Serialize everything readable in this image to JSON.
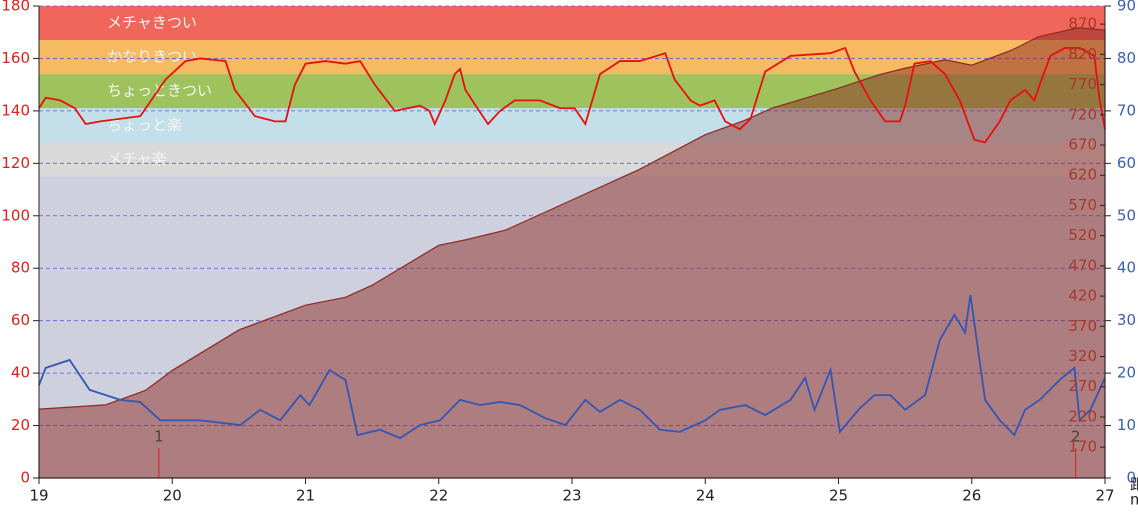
{
  "chart_data": {
    "type": "line",
    "xlim": [
      19,
      27
    ],
    "xticks": [
      19,
      20,
      21,
      22,
      23,
      24,
      25,
      26,
      27
    ],
    "x_label": "距",
    "x_unit": "m",
    "ylim": [
      0,
      180
    ],
    "yticks": [
      0,
      20,
      40,
      60,
      80,
      100,
      120,
      140,
      160,
      180
    ],
    "y_color": "#e0201a",
    "y2lim": [
      119,
      900
    ],
    "y2ticks": [
      170,
      220,
      270,
      320,
      370,
      420,
      470,
      520,
      570,
      620,
      670,
      720,
      770,
      820,
      870
    ],
    "y2_color": "#a8392c",
    "y3lim": [
      0,
      90
    ],
    "y3ticks": [
      0,
      10,
      20,
      30,
      40,
      50,
      60,
      70,
      80,
      90
    ],
    "y3_color": "#3a5fb0",
    "grid": true,
    "zones": [
      {
        "name": "メチャきつい",
        "from": 167,
        "to": 180,
        "color": "#f0665a"
      },
      {
        "name": "かなりきつい",
        "from": 154,
        "to": 167,
        "color": "#f5ba62"
      },
      {
        "name": "ちょっときつい",
        "from": 141,
        "to": 154,
        "color": "#9ec35c"
      },
      {
        "name": "ちょっと楽",
        "from": 128,
        "to": 141,
        "color": "#c3dfe9"
      },
      {
        "name": "メチャ楽",
        "from": 115,
        "to": 128,
        "color": "#d9d9d9"
      }
    ],
    "markers": [
      {
        "label": "1",
        "x": 19.9
      },
      {
        "label": "2",
        "x": 26.78
      }
    ],
    "series": [
      {
        "color": "#8b2a22",
        "axis": "y2",
        "area": true,
        "x": [
          19.0,
          19.5,
          19.8,
          20.0,
          20.5,
          21.0,
          21.3,
          21.5,
          22.0,
          22.2,
          22.5,
          23.0,
          23.5,
          24.0,
          24.3,
          24.5,
          25.0,
          25.3,
          25.5,
          25.8,
          26.0,
          26.3,
          26.5,
          26.8,
          27.0
        ],
        "values": [
          233,
          240,
          264,
          297,
          364,
          405,
          418,
          438,
          504,
          513,
          529,
          579,
          629,
          687,
          711,
          731,
          764,
          786,
          797,
          811,
          802,
          827,
          849,
          864,
          860
        ]
      },
      {
        "color": "#e8100c",
        "axis": "y",
        "x": [
          19.0,
          19.05,
          19.16,
          19.27,
          19.35,
          19.46,
          19.76,
          19.95,
          20.1,
          20.21,
          20.4,
          20.47,
          20.62,
          20.77,
          20.85,
          20.92,
          21.0,
          21.15,
          21.3,
          21.41,
          21.52,
          21.67,
          21.86,
          21.93,
          21.97,
          22.05,
          22.12,
          22.16,
          22.2,
          22.29,
          22.37,
          22.46,
          22.57,
          22.76,
          22.91,
          23.02,
          23.1,
          23.21,
          23.36,
          23.51,
          23.7,
          23.77,
          23.89,
          23.96,
          24.07,
          24.15,
          24.26,
          24.34,
          24.45,
          24.64,
          24.94,
          25.05,
          25.12,
          25.24,
          25.35,
          25.46,
          25.5,
          25.57,
          25.69,
          25.8,
          25.91,
          26.02,
          26.1,
          26.21,
          26.29,
          26.4,
          26.47,
          26.51,
          26.59,
          26.7,
          26.81,
          26.92,
          26.96,
          27.0
        ],
        "values": [
          141,
          145,
          144,
          141,
          135,
          136,
          138,
          152,
          159,
          160,
          159,
          148,
          138,
          136,
          136,
          150,
          158,
          159,
          158,
          159,
          150,
          140,
          142,
          140,
          135,
          144,
          154,
          156,
          148,
          141,
          135,
          140,
          144,
          144,
          141,
          141,
          135,
          154,
          159,
          159,
          162,
          152,
          144,
          142,
          144,
          136,
          133,
          137,
          155,
          161,
          162,
          164,
          155,
          144,
          136,
          136,
          142,
          158,
          159,
          154,
          144,
          129,
          128,
          136,
          144,
          148,
          144,
          150,
          161,
          164,
          164,
          161,
          144,
          133
        ]
      },
      {
        "color": "#3556b0",
        "axis": "y3",
        "x": [
          19.0,
          19.05,
          19.23,
          19.38,
          19.61,
          19.76,
          19.91,
          20.21,
          20.51,
          20.66,
          20.81,
          20.96,
          21.03,
          21.18,
          21.3,
          21.39,
          21.56,
          21.71,
          21.86,
          22.01,
          22.16,
          22.31,
          22.46,
          22.61,
          22.8,
          22.95,
          23.1,
          23.21,
          23.36,
          23.51,
          23.66,
          23.81,
          24.0,
          24.11,
          24.3,
          24.45,
          24.64,
          24.75,
          24.82,
          24.94,
          25.01,
          25.16,
          25.27,
          25.39,
          25.5,
          25.65,
          25.76,
          25.87,
          25.95,
          25.99,
          26.1,
          26.21,
          26.32,
          26.4,
          26.51,
          26.66,
          26.77,
          26.81,
          26.89,
          27.0
        ],
        "values": [
          17.7,
          21,
          22.5,
          16.8,
          14.9,
          14.5,
          11,
          11,
          10.1,
          13,
          11,
          15.8,
          13.9,
          20.6,
          18.7,
          8.2,
          9.2,
          7.6,
          10.1,
          11,
          14.9,
          13.9,
          14.5,
          13.9,
          11.4,
          10.1,
          14.9,
          12.6,
          14.9,
          13,
          9.2,
          8.8,
          11,
          13,
          13.9,
          12,
          14.9,
          19.1,
          13,
          20.6,
          8.8,
          13.3,
          15.8,
          15.8,
          13,
          15.8,
          26.3,
          31.1,
          27.7,
          34.9,
          14.9,
          11,
          8.2,
          13,
          14.9,
          18.7,
          21,
          11,
          13,
          19.1
        ]
      }
    ]
  }
}
